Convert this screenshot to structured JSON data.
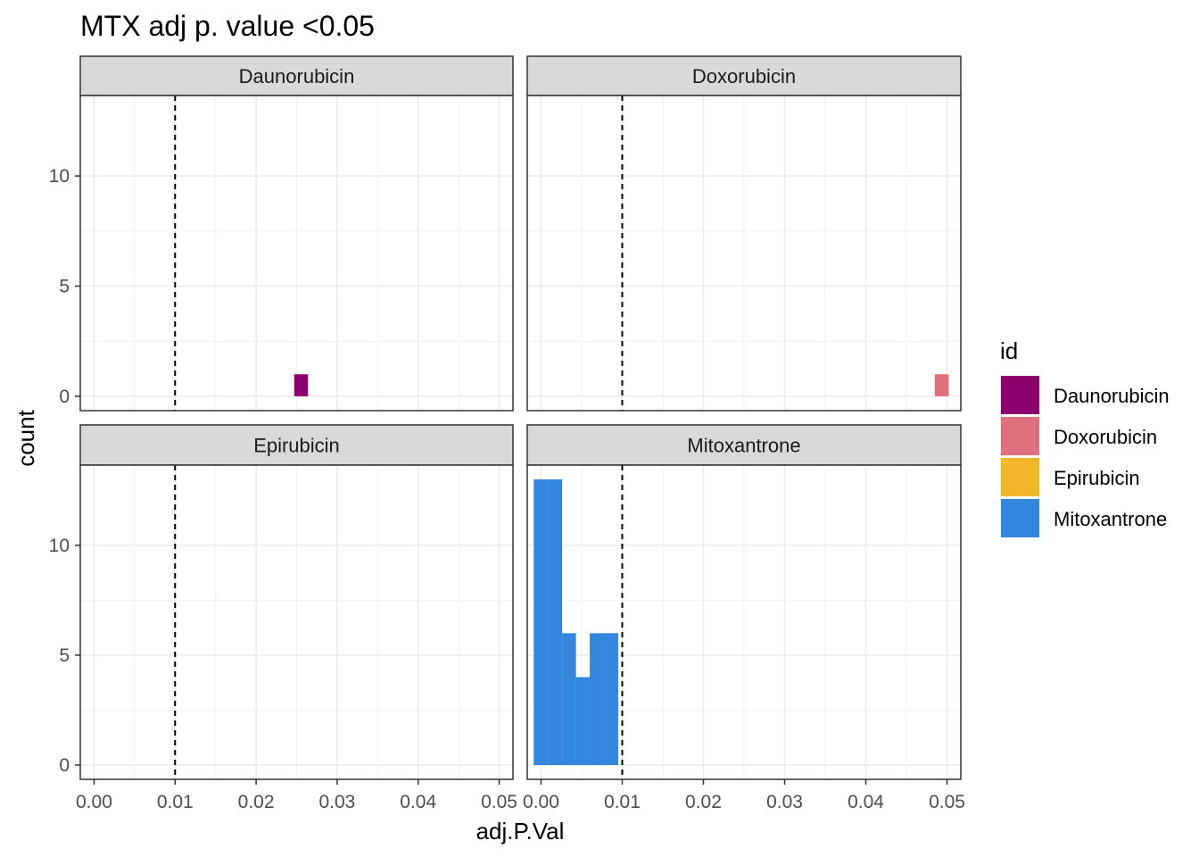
{
  "chart_data": {
    "type": "bar",
    "subtype": "faceted histogram",
    "title": "MTX adj p. value <0.05",
    "xlabel": "adj.P.Val",
    "ylabel": "count",
    "xlim": [
      -0.0017,
      0.0517
    ],
    "ylim": [
      -0.65,
      13.65
    ],
    "x_ticks": [
      "0.00",
      "0.01",
      "0.02",
      "0.03",
      "0.04",
      "0.05"
    ],
    "x_tick_values": [
      0,
      0.01,
      0.02,
      0.03,
      0.04,
      0.05
    ],
    "y_ticks": [
      "0",
      "5",
      "10"
    ],
    "y_tick_values": [
      0,
      5,
      10
    ],
    "reference_line": {
      "x": 0.01,
      "style": "dashed"
    },
    "grid": true,
    "bin_width": 0.00172,
    "legend": {
      "title": "id",
      "position": "right",
      "entries": [
        {
          "label": "Daunorubicin",
          "color": "#8B006D"
        },
        {
          "label": "Doxorubicin",
          "color": "#DF707E"
        },
        {
          "label": "Epirubicin",
          "color": "#F1B72B"
        },
        {
          "label": "Mitoxantrone",
          "color": "#3386DD"
        }
      ]
    },
    "facets": [
      {
        "label": "Daunorubicin",
        "color": "#8B006D",
        "bins": [
          {
            "x0": 0.0247,
            "x1": 0.0264,
            "count": 1
          }
        ]
      },
      {
        "label": "Doxorubicin",
        "color": "#DF707E",
        "bins": [
          {
            "x0": 0.0485,
            "x1": 0.0502,
            "count": 1
          }
        ]
      },
      {
        "label": "Epirubicin",
        "color": "#F1B72B",
        "bins": []
      },
      {
        "label": "Mitoxantrone",
        "color": "#3386DD",
        "bins": [
          {
            "x0": -0.0009,
            "x1": 0.0009,
            "count": 13
          },
          {
            "x0": 0.0009,
            "x1": 0.0026,
            "count": 13
          },
          {
            "x0": 0.0026,
            "x1": 0.0043,
            "count": 6
          },
          {
            "x0": 0.0043,
            "x1": 0.006,
            "count": 4
          },
          {
            "x0": 0.006,
            "x1": 0.0078,
            "count": 6
          },
          {
            "x0": 0.0078,
            "x1": 0.0095,
            "count": 6
          }
        ]
      }
    ]
  }
}
